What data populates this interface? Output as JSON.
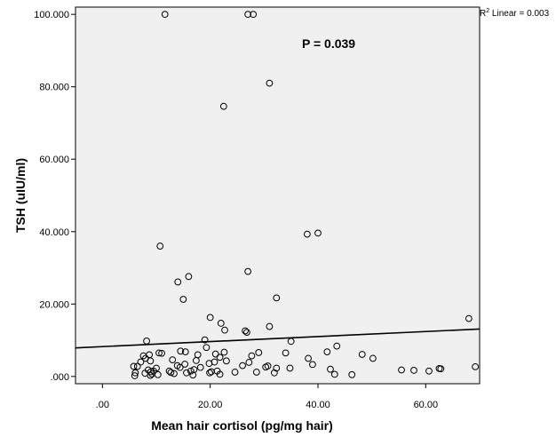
{
  "chart_data": {
    "type": "scatter",
    "xlabel": "Mean hair cortisol (pg/mg hair)",
    "ylabel": "TSH (uIU/ml)",
    "xlim": [
      -5,
      70
    ],
    "ylim": [
      -2,
      102
    ],
    "x_ticks": [
      0,
      20,
      40,
      60
    ],
    "x_tick_labels": [
      ".00",
      "20.00",
      "40.00",
      "60.00"
    ],
    "y_ticks": [
      0,
      20,
      40,
      60,
      80,
      100
    ],
    "y_tick_labels": [
      ".000",
      "20.000",
      "40.000",
      "60.000",
      "80.000",
      "100.000"
    ],
    "grid": false,
    "background_color": "#f0f0f0",
    "marker": "open-circle",
    "annotations": {
      "p_value": "P = 0.039",
      "r2_prefix": "R",
      "r2_sup": "2",
      "r2_suffix": " Linear = 0.003"
    },
    "fit_line": {
      "x": [
        -5,
        70
      ],
      "y": [
        7.9,
        13.1
      ]
    },
    "points": [
      {
        "x": 11.6,
        "y": 100.0
      },
      {
        "x": 27.0,
        "y": 100.0
      },
      {
        "x": 28.0,
        "y": 100.0
      },
      {
        "x": 31.0,
        "y": 81.0
      },
      {
        "x": 22.5,
        "y": 74.6
      },
      {
        "x": 38.0,
        "y": 39.3
      },
      {
        "x": 40.0,
        "y": 39.6
      },
      {
        "x": 10.7,
        "y": 36.0
      },
      {
        "x": 27.0,
        "y": 29.0
      },
      {
        "x": 16.0,
        "y": 27.6
      },
      {
        "x": 14.0,
        "y": 26.1
      },
      {
        "x": 15.0,
        "y": 21.3
      },
      {
        "x": 32.3,
        "y": 21.7
      },
      {
        "x": 20.0,
        "y": 16.3
      },
      {
        "x": 22.0,
        "y": 14.7
      },
      {
        "x": 68.0,
        "y": 16.0
      },
      {
        "x": 31.0,
        "y": 13.8
      },
      {
        "x": 26.5,
        "y": 12.6
      },
      {
        "x": 26.8,
        "y": 12.2
      },
      {
        "x": 22.7,
        "y": 12.8
      },
      {
        "x": 8.2,
        "y": 9.8
      },
      {
        "x": 19.0,
        "y": 10.1
      },
      {
        "x": 35.0,
        "y": 9.7
      },
      {
        "x": 43.5,
        "y": 8.4
      },
      {
        "x": 19.3,
        "y": 8.0
      },
      {
        "x": 14.5,
        "y": 7.0
      },
      {
        "x": 15.4,
        "y": 6.8
      },
      {
        "x": 10.5,
        "y": 6.5
      },
      {
        "x": 11.0,
        "y": 6.4
      },
      {
        "x": 29.0,
        "y": 6.6
      },
      {
        "x": 34.0,
        "y": 6.5
      },
      {
        "x": 41.7,
        "y": 6.8
      },
      {
        "x": 48.2,
        "y": 6.1
      },
      {
        "x": 8.7,
        "y": 6.0
      },
      {
        "x": 21.0,
        "y": 6.2
      },
      {
        "x": 22.6,
        "y": 6.7
      },
      {
        "x": 17.7,
        "y": 6.0
      },
      {
        "x": 8.0,
        "y": 5.0
      },
      {
        "x": 7.6,
        "y": 5.7
      },
      {
        "x": 27.7,
        "y": 5.7
      },
      {
        "x": 38.2,
        "y": 5.0
      },
      {
        "x": 50.2,
        "y": 5.0
      },
      {
        "x": 21.8,
        "y": 5.3
      },
      {
        "x": 13.0,
        "y": 4.6
      },
      {
        "x": 17.4,
        "y": 4.4
      },
      {
        "x": 23.0,
        "y": 4.3
      },
      {
        "x": 20.8,
        "y": 4.0
      },
      {
        "x": 27.2,
        "y": 3.9
      },
      {
        "x": 7.1,
        "y": 4.0
      },
      {
        "x": 8.9,
        "y": 4.3
      },
      {
        "x": 15.3,
        "y": 3.4
      },
      {
        "x": 19.8,
        "y": 3.6
      },
      {
        "x": 26.0,
        "y": 3.0
      },
      {
        "x": 39.0,
        "y": 3.3
      },
      {
        "x": 13.9,
        "y": 3.0
      },
      {
        "x": 14.4,
        "y": 2.5
      },
      {
        "x": 5.8,
        "y": 2.8
      },
      {
        "x": 6.5,
        "y": 2.8
      },
      {
        "x": 30.3,
        "y": 2.6
      },
      {
        "x": 30.7,
        "y": 2.9
      },
      {
        "x": 34.8,
        "y": 2.3
      },
      {
        "x": 32.3,
        "y": 2.3
      },
      {
        "x": 42.3,
        "y": 2.0
      },
      {
        "x": 55.5,
        "y": 1.8
      },
      {
        "x": 57.8,
        "y": 1.7
      },
      {
        "x": 62.5,
        "y": 2.2
      },
      {
        "x": 62.8,
        "y": 2.1
      },
      {
        "x": 69.2,
        "y": 2.7
      },
      {
        "x": 60.6,
        "y": 1.5
      },
      {
        "x": 17.0,
        "y": 1.9
      },
      {
        "x": 18.2,
        "y": 2.5
      },
      {
        "x": 16.4,
        "y": 1.5
      },
      {
        "x": 12.4,
        "y": 1.5
      },
      {
        "x": 9.5,
        "y": 1.5
      },
      {
        "x": 8.5,
        "y": 1.8
      },
      {
        "x": 9.0,
        "y": 1.3
      },
      {
        "x": 10.0,
        "y": 2.3
      },
      {
        "x": 20.2,
        "y": 1.3
      },
      {
        "x": 21.3,
        "y": 1.5
      },
      {
        "x": 24.6,
        "y": 1.2
      },
      {
        "x": 28.6,
        "y": 1.2
      },
      {
        "x": 12.7,
        "y": 1.1
      },
      {
        "x": 13.3,
        "y": 0.8
      },
      {
        "x": 15.6,
        "y": 1.0
      },
      {
        "x": 19.9,
        "y": 1.0
      },
      {
        "x": 31.9,
        "y": 1.0
      },
      {
        "x": 6.1,
        "y": 1.0
      },
      {
        "x": 7.9,
        "y": 0.9
      },
      {
        "x": 9.2,
        "y": 0.7
      },
      {
        "x": 10.3,
        "y": 0.5
      },
      {
        "x": 21.8,
        "y": 0.6
      },
      {
        "x": 43.1,
        "y": 0.6
      },
      {
        "x": 46.3,
        "y": 0.5
      },
      {
        "x": 8.9,
        "y": 0.3
      },
      {
        "x": 6.0,
        "y": 0.2
      },
      {
        "x": 16.8,
        "y": 0.4
      }
    ]
  }
}
